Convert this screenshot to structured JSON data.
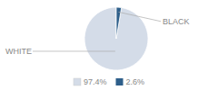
{
  "chart_data": {
    "type": "pie",
    "categories": [
      "WHITE",
      "BLACK"
    ],
    "values": [
      97.4,
      2.6
    ],
    "value_labels": [
      "97.4%",
      "2.6%"
    ],
    "colors": [
      "#d4dce8",
      "#2e5f8a"
    ],
    "legend": "bottom"
  }
}
